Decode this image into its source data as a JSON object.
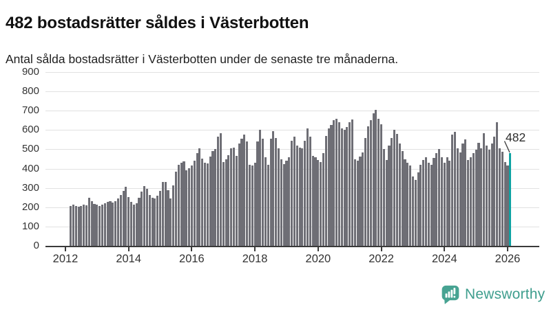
{
  "header": {
    "title": "482 bostadsrätter såldes i Västerbotten",
    "subtitle": "Antal sålda bostadsrätter i Västerbotten under de senaste tre månaderna."
  },
  "chart_data": {
    "type": "bar",
    "title": "482 bostadsrätter såldes i Västerbotten",
    "subtitle": "Antal sålda bostadsrätter i Västerbotten under de senaste tre månaderna.",
    "x_start": "2012-03",
    "frequency": "monthly",
    "ylim": [
      0,
      900
    ],
    "grid": true,
    "y_ticks": [
      0,
      100,
      200,
      300,
      400,
      500,
      600,
      700,
      800,
      900
    ],
    "x_tick_labels": [
      "2012",
      "2014",
      "2016",
      "2018",
      "2020",
      "2022",
      "2024",
      "2026"
    ],
    "values": [
      205,
      212,
      208,
      202,
      206,
      215,
      210,
      250,
      232,
      218,
      212,
      208,
      214,
      220,
      228,
      232,
      226,
      232,
      246,
      264,
      284,
      306,
      252,
      228,
      215,
      222,
      248,
      280,
      308,
      294,
      262,
      250,
      246,
      260,
      286,
      330,
      332,
      290,
      246,
      312,
      386,
      420,
      432,
      436,
      390,
      402,
      418,
      442,
      480,
      504,
      452,
      430,
      426,
      462,
      492,
      500,
      565,
      585,
      435,
      450,
      470,
      505,
      510,
      465,
      530,
      555,
      575,
      540,
      420,
      415,
      430,
      540,
      600,
      555,
      460,
      420,
      555,
      595,
      560,
      505,
      450,
      425,
      440,
      460,
      545,
      565,
      520,
      510,
      505,
      545,
      610,
      565,
      465,
      460,
      445,
      435,
      480,
      570,
      610,
      625,
      650,
      660,
      640,
      610,
      600,
      615,
      640,
      655,
      450,
      440,
      462,
      485,
      560,
      620,
      650,
      685,
      705,
      660,
      630,
      500,
      445,
      520,
      560,
      600,
      580,
      530,
      490,
      450,
      430,
      415,
      360,
      340,
      380,
      420,
      445,
      460,
      430,
      420,
      455,
      480,
      500,
      460,
      430,
      460,
      440,
      575,
      590,
      505,
      485,
      530,
      550,
      445,
      460,
      480,
      498,
      532,
      505,
      582,
      520,
      498,
      530,
      565,
      640,
      505,
      488,
      435,
      418,
      482
    ],
    "highlight": {
      "index": 167,
      "value": 482,
      "label": "482"
    },
    "colors": {
      "bar": "#6e6e75",
      "highlight": "#0fa3a3",
      "grid": "#e1e1e1",
      "axis": "#3a3a3a",
      "text": "#333333"
    }
  },
  "footer": {
    "brand": "Newsworthy",
    "brand_color": "#3f9e8e",
    "logo_icon": "bar-chart-speech-bubble"
  }
}
